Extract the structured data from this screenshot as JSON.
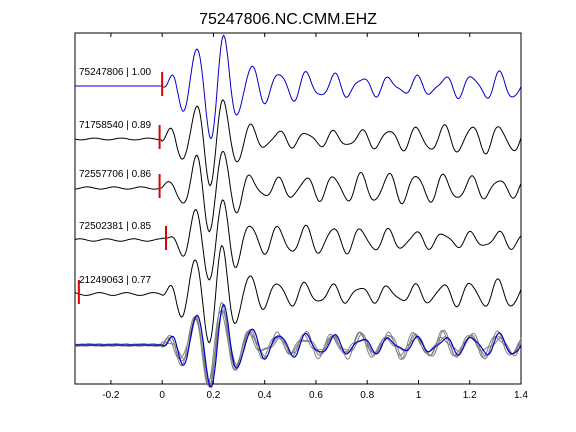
{
  "chart_data": {
    "type": "line",
    "title": "75247806.NC.CMM.EHZ",
    "xlabel": "",
    "ylabel": "",
    "xlim": [
      -0.34,
      1.4
    ],
    "x_ticks": [
      "-0.2",
      "0",
      "0.2",
      "0.4",
      "0.6",
      "0.8",
      "1",
      "1.2",
      "1.4"
    ],
    "x_tick_values": [
      -0.2,
      0,
      0.2,
      0.4,
      0.6,
      0.8,
      1.0,
      1.2,
      1.4
    ],
    "grid": false,
    "colors": {
      "primary": "#0000cc",
      "other": "#000000",
      "stack_other": "#808080",
      "pick": "#dd0000"
    },
    "traces": [
      {
        "label": "75247806 | 1.00",
        "id": "75247806",
        "cc": 1.0,
        "pick_t": 0.0,
        "color": "#0000cc"
      },
      {
        "label": "71758540 | 0.89",
        "id": "71758540",
        "cc": 0.89,
        "pick_t": -0.01,
        "color": "#000000"
      },
      {
        "label": "72557706 | 0.86",
        "id": "72557706",
        "cc": 0.86,
        "pick_t": -0.01,
        "color": "#000000"
      },
      {
        "label": "72502381 | 0.85",
        "id": "72502381",
        "cc": 0.85,
        "pick_t": 0.015,
        "color": "#000000"
      },
      {
        "label": "21249063 | 0.77",
        "id": "21249063",
        "cc": 0.77,
        "pick_t": -0.325,
        "color": "#000000"
      }
    ]
  }
}
